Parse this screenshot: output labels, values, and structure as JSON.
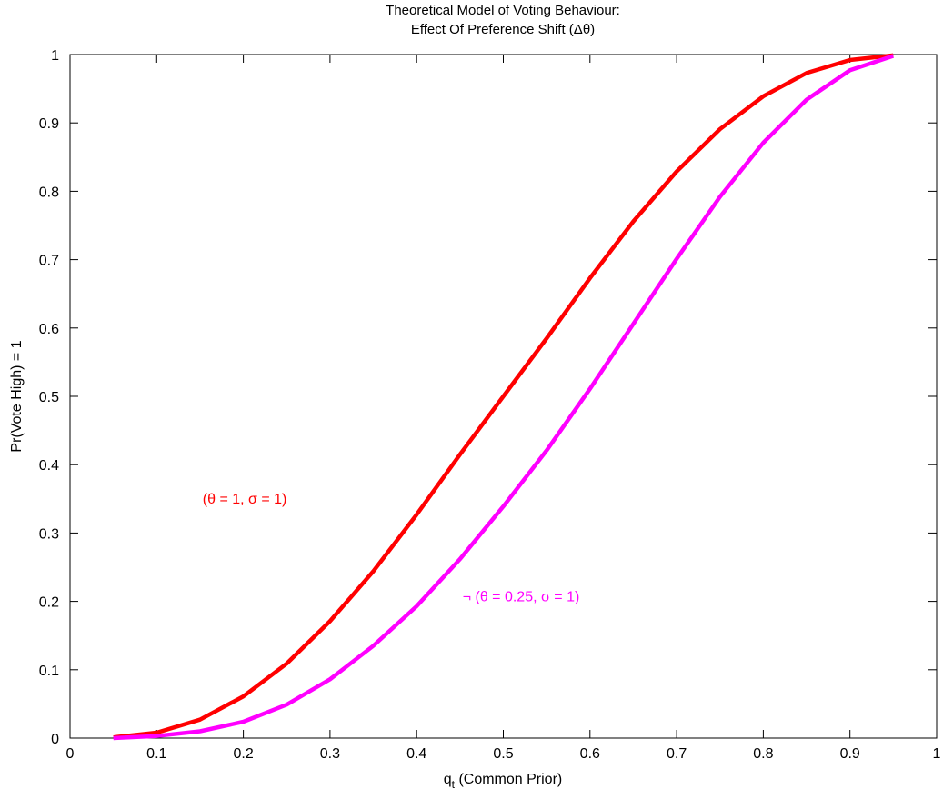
{
  "chart_data": {
    "type": "line",
    "title": "Theoretical Model of Voting Behaviour:",
    "subtitle": "Effect Of Preference Shift (Δθ)",
    "xlabel": {
      "main": "q",
      "sub": "t",
      "rest": " (Common Prior)"
    },
    "ylabel": "Pr(Vote High) = 1",
    "xlim": [
      0,
      1
    ],
    "ylim": [
      0,
      1
    ],
    "xticks": [
      "0",
      "0.1",
      "0.2",
      "0.3",
      "0.4",
      "0.5",
      "0.6",
      "0.7",
      "0.8",
      "0.9",
      "1"
    ],
    "yticks": [
      "0",
      "0.1",
      "0.2",
      "0.3",
      "0.4",
      "0.5",
      "0.6",
      "0.7",
      "0.8",
      "0.9",
      "1"
    ],
    "grid": false,
    "x": [
      0.05,
      0.1,
      0.15,
      0.2,
      0.25,
      0.3,
      0.35,
      0.4,
      0.45,
      0.5,
      0.55,
      0.6,
      0.65,
      0.7,
      0.75,
      0.8,
      0.85,
      0.9,
      0.95
    ],
    "series": [
      {
        "color": "#ff0000",
        "values": [
          0.001,
          0.008,
          0.027,
          0.061,
          0.109,
          0.171,
          0.244,
          0.327,
          0.415,
          0.5,
          0.585,
          0.673,
          0.756,
          0.829,
          0.891,
          0.939,
          0.973,
          0.992,
          0.999
        ]
      },
      {
        "color": "#ff00ff",
        "values": [
          0.0,
          0.003,
          0.01,
          0.024,
          0.049,
          0.086,
          0.135,
          0.193,
          0.262,
          0.339,
          0.421,
          0.511,
          0.606,
          0.701,
          0.792,
          0.871,
          0.934,
          0.977,
          0.998
        ]
      }
    ],
    "annotations": [
      {
        "text": "(θ = 1, σ = 1)",
        "color": "#ff0000",
        "x": 0.153,
        "y": 0.343
      },
      {
        "text": "¬  (θ = 0.25, σ = 1)",
        "color": "#ff00ff",
        "x": 0.453,
        "y": 0.2
      }
    ]
  }
}
